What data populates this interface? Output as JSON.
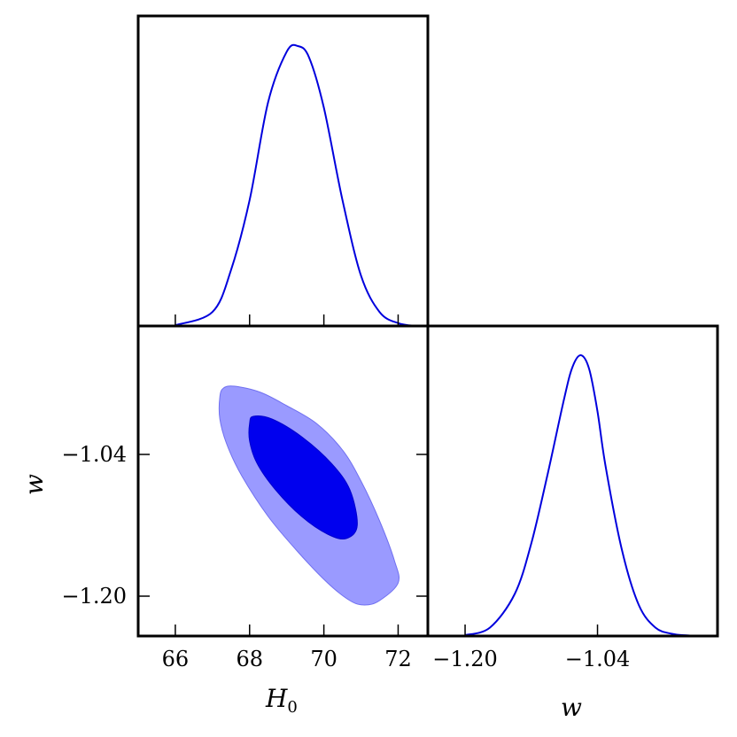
{
  "chart_data": [
    {
      "panel": "H0-marginal",
      "type": "line",
      "xlim": [
        65.0,
        72.8
      ],
      "x_ticks": [
        66,
        68,
        70,
        72
      ],
      "x": [
        66.0,
        67.0,
        67.5,
        68.0,
        68.5,
        69.0,
        69.3,
        69.6,
        70.0,
        70.5,
        71.0,
        71.5,
        72.0,
        72.5
      ],
      "y": [
        0.003,
        0.05,
        0.2,
        0.45,
        0.8,
        0.98,
        1.0,
        0.96,
        0.78,
        0.45,
        0.18,
        0.05,
        0.01,
        0.0
      ],
      "color": "#0000dd"
    },
    {
      "panel": "w-vs-H0",
      "type": "contour",
      "xlim": [
        65.0,
        72.8
      ],
      "ylim": [
        -1.245,
        -0.895
      ],
      "x_ticks": [
        66,
        68,
        70,
        72
      ],
      "y_ticks": [
        -1.2,
        -1.04
      ],
      "y_tick_labels": [
        "−1.20",
        "−1.04"
      ],
      "xlabel": "H",
      "xlabel_sub": "0",
      "ylabel": "w",
      "outer_color": "#9a9aff",
      "inner_color": "#0000ee",
      "outer_contour": [
        [
          67.2,
          -0.975
        ],
        [
          67.3,
          -0.965
        ],
        [
          67.6,
          -0.963
        ],
        [
          68.3,
          -0.97
        ],
        [
          69.0,
          -0.985
        ],
        [
          69.8,
          -1.005
        ],
        [
          70.5,
          -1.035
        ],
        [
          71.0,
          -1.07
        ],
        [
          71.5,
          -1.115
        ],
        [
          71.9,
          -1.16
        ],
        [
          72.0,
          -1.185
        ],
        [
          71.5,
          -1.205
        ],
        [
          71.1,
          -1.21
        ],
        [
          70.7,
          -1.205
        ],
        [
          70.1,
          -1.185
        ],
        [
          69.3,
          -1.15
        ],
        [
          68.5,
          -1.11
        ],
        [
          67.8,
          -1.065
        ],
        [
          67.4,
          -1.03
        ],
        [
          67.2,
          -1.0
        ]
      ],
      "inner_contour": [
        [
          68.0,
          -1.005
        ],
        [
          68.1,
          -0.997
        ],
        [
          68.6,
          -1.0
        ],
        [
          69.4,
          -1.02
        ],
        [
          70.2,
          -1.05
        ],
        [
          70.7,
          -1.08
        ],
        [
          70.9,
          -1.12
        ],
        [
          70.6,
          -1.135
        ],
        [
          70.1,
          -1.13
        ],
        [
          69.4,
          -1.11
        ],
        [
          68.7,
          -1.08
        ],
        [
          68.2,
          -1.05
        ],
        [
          68.0,
          -1.025
        ]
      ]
    },
    {
      "panel": "w-marginal",
      "type": "line",
      "xlim": [
        -1.245,
        -0.895
      ],
      "x_ticks": [
        -1.2,
        -1.04
      ],
      "x_tick_labels": [
        "−1.20",
        "−1.04"
      ],
      "xlabel": "w",
      "x": [
        -1.2,
        -1.17,
        -1.14,
        -1.12,
        -1.1,
        -1.08,
        -1.07,
        -1.06,
        -1.05,
        -1.04,
        -1.03,
        -1.01,
        -0.99,
        -0.97,
        -0.95,
        -0.93,
        -0.9
      ],
      "y": [
        0.003,
        0.03,
        0.15,
        0.33,
        0.58,
        0.85,
        0.96,
        1.0,
        0.95,
        0.8,
        0.6,
        0.3,
        0.11,
        0.03,
        0.008,
        0.002,
        0.0
      ],
      "color": "#0000dd"
    }
  ]
}
